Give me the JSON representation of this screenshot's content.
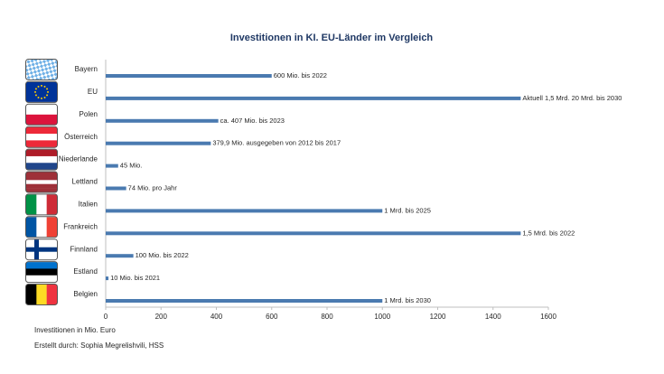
{
  "chart_data": {
    "type": "bar",
    "orientation": "horizontal",
    "title": "Investitionen in KI. EU-Länder im Vergleich",
    "categories": [
      "Bayern",
      "EU",
      "Polen",
      "Österreich",
      "Niederlande",
      "Lettland",
      "Italien",
      "Frankreich",
      "Finnland",
      "Estland",
      "Belgien"
    ],
    "values": [
      600,
      1500,
      407,
      379.9,
      45,
      74,
      1000,
      1500,
      100,
      10,
      1000
    ],
    "value_labels": [
      "600 Mio. bis 2022",
      "Aktuell 1,5 Mrd. 20 Mrd. bis 2030",
      "ca. 407 Mio. bis 2023",
      "379,9 Mio. ausgegeben von 2012 bis 2017",
      "45 Mio.",
      "74 Mio. pro Jahr",
      "1 Mrd. bis 2025",
      "1,5 Mrd. bis 2022",
      "100 Mio. bis 2022",
      "10 Mio. bis 2021",
      "1 Mrd. bis 2030"
    ],
    "color": "#4a7ab0",
    "xlim": [
      0,
      1600
    ],
    "xticks": [
      0,
      200,
      400,
      600,
      800,
      1000,
      1200,
      1400,
      1600
    ],
    "x_label": "Investitionen in Mio. Euro",
    "source": "Erstellt durch: Sophia Megrelishvili, HSS"
  }
}
